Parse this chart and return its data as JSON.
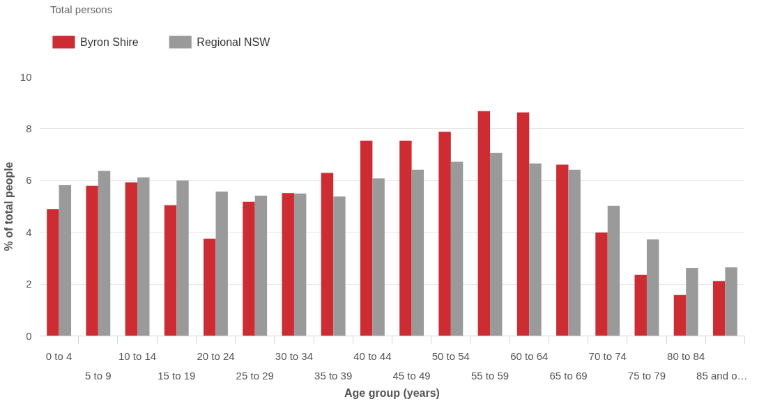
{
  "chart_data": {
    "type": "bar",
    "title": "Total persons",
    "xlabel": "Age group (years)",
    "ylabel": "% of total people",
    "categories": [
      "0 to 4",
      "5 to 9",
      "10 to 14",
      "15 to 19",
      "20 to 24",
      "25 to 29",
      "30 to 34",
      "35 to 39",
      "40 to 44",
      "45 to 49",
      "50 to 54",
      "55 to 59",
      "60 to 64",
      "65 to 69",
      "70 to 74",
      "75 to 79",
      "80 to 84",
      "85 and o…"
    ],
    "series": [
      {
        "name": "Byron Shire",
        "color": "#cc2c32",
        "values": [
          4.9,
          5.8,
          5.93,
          5.05,
          3.76,
          5.18,
          5.52,
          6.3,
          7.54,
          7.54,
          7.88,
          8.68,
          8.63,
          6.61,
          3.99,
          2.36,
          1.58,
          2.12
        ]
      },
      {
        "name": "Regional NSW",
        "color": "#9a9a9a",
        "values": [
          5.82,
          6.37,
          6.12,
          6.0,
          5.57,
          5.42,
          5.5,
          5.38,
          6.08,
          6.42,
          6.73,
          7.06,
          6.66,
          6.42,
          5.02,
          3.73,
          2.62,
          2.65
        ]
      }
    ],
    "ylim": [
      0,
      10
    ],
    "yticks": [
      0,
      2,
      4,
      6,
      8,
      10
    ],
    "grid": "y",
    "legend": "top left"
  }
}
